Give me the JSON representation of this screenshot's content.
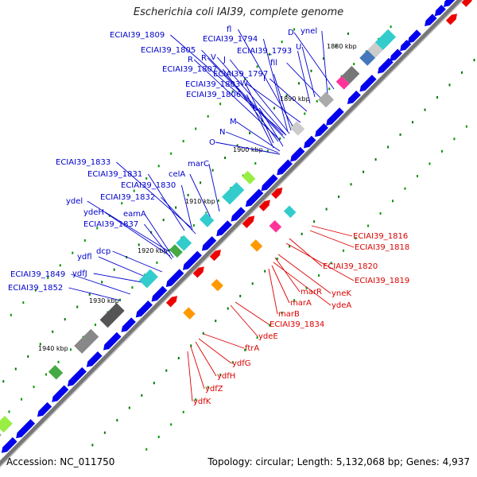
{
  "title": "Escherichia coli IAI39, complete genome",
  "footer": {
    "accession": "Accession: NC_011750",
    "summary": "Topology: circular; Length: 5,132,068 bp; Genes: 4,937"
  },
  "colors": {
    "forward_label": "#0000cc",
    "reverse_label": "#dd0000",
    "forward_gene": "#0000ee",
    "reverse_gene": "#ee0000",
    "backbone": "#777777",
    "tick": "#007700"
  },
  "kbp_ticks": [
    "1880 kbp",
    "1890 kbp",
    "1900 kbp",
    "1910 kbp",
    "1920 kbp",
    "1930 kbp",
    "1940 kbp"
  ],
  "forward_labels": [
    "ECIAI39_1809",
    "fl",
    "D",
    "ynel",
    "ECIAI39_1794",
    "ECIAI39_1805",
    "ECIAI39_1793",
    "U",
    "R",
    "R",
    "V",
    "J",
    "fil",
    "ECIAI39_1807",
    "ECIAI39_1797",
    "ECIAI39_1803",
    "W",
    "I",
    "ECIAI39_1806",
    "L",
    "M",
    "N",
    "O",
    "ECIAI39_1833",
    "marC",
    "ECIAI39_1831",
    "celA",
    "ECIAI39_1830",
    "ECIAI39_1832",
    "ydel",
    "ydeH",
    "eamA",
    "ECIAI39_1837",
    "dcp",
    "ydfl",
    "ydfJ",
    "ECIAI39_1849",
    "ECIAI39_1852"
  ],
  "reverse_labels": [
    "ECIAI39_1816",
    "ECIAI39_1818",
    "ECIAI39_1820",
    "ECIAI39_1819",
    "yneK",
    "marR",
    "ydeA",
    "marA",
    "marB",
    "ECIAI39_1834",
    "ydeE",
    "ftrA",
    "ydfG",
    "ydfH",
    "ydfZ",
    "ydfK"
  ]
}
